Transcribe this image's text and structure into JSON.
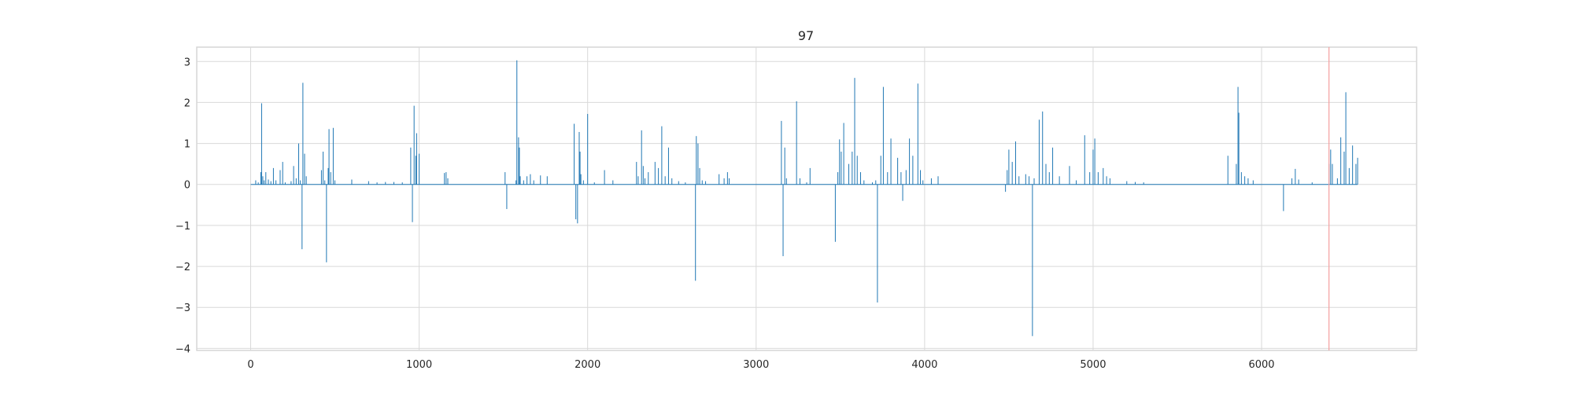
{
  "chart_data": {
    "type": "line",
    "title": "97",
    "xlabel": "",
    "ylabel": "",
    "xlim": [
      -320,
      6920
    ],
    "ylim": [
      -4.05,
      3.35
    ],
    "x_ticks": [
      0,
      1000,
      2000,
      3000,
      4000,
      5000,
      6000
    ],
    "y_ticks": [
      -4,
      -3,
      -2,
      -1,
      0,
      1,
      2,
      3
    ],
    "x_tick_labels": [
      "0",
      "1000",
      "2000",
      "3000",
      "4000",
      "5000",
      "6000"
    ],
    "y_tick_labels": [
      "−4",
      "−3",
      "−2",
      "−1",
      "0",
      "1",
      "2",
      "3"
    ],
    "grid": true,
    "legend": "none",
    "baseline_x_range": [
      0,
      6570
    ],
    "series": [
      {
        "color": "#1f77b4",
        "spikes": [
          [
            30,
            0.1
          ],
          [
            45,
            0.05
          ],
          [
            60,
            0.3
          ],
          [
            65,
            1.98
          ],
          [
            72,
            0.2
          ],
          [
            80,
            0.1
          ],
          [
            90,
            0.3
          ],
          [
            105,
            0.12
          ],
          [
            120,
            0.08
          ],
          [
            135,
            0.4
          ],
          [
            150,
            0.1
          ],
          [
            175,
            0.35
          ],
          [
            190,
            0.55
          ],
          [
            205,
            0.05
          ],
          [
            240,
            0.08
          ],
          [
            255,
            0.45
          ],
          [
            270,
            0.15
          ],
          [
            285,
            1.0
          ],
          [
            295,
            0.1
          ],
          [
            305,
            -1.58
          ],
          [
            310,
            2.48
          ],
          [
            320,
            0.75
          ],
          [
            330,
            0.2
          ],
          [
            420,
            0.35
          ],
          [
            430,
            0.8
          ],
          [
            440,
            0.1
          ],
          [
            450,
            -1.9
          ],
          [
            460,
            0.4
          ],
          [
            465,
            1.35
          ],
          [
            475,
            0.3
          ],
          [
            490,
            1.38
          ],
          [
            500,
            0.1
          ],
          [
            600,
            0.12
          ],
          [
            700,
            0.08
          ],
          [
            750,
            0.05
          ],
          [
            800,
            0.06
          ],
          [
            850,
            0.06
          ],
          [
            900,
            0.05
          ],
          [
            950,
            0.9
          ],
          [
            960,
            -0.92
          ],
          [
            970,
            1.92
          ],
          [
            980,
            0.7
          ],
          [
            985,
            1.25
          ],
          [
            1000,
            0.75
          ],
          [
            1150,
            0.28
          ],
          [
            1160,
            0.3
          ],
          [
            1170,
            0.15
          ],
          [
            1510,
            0.3
          ],
          [
            1520,
            -0.6
          ],
          [
            1575,
            0.1
          ],
          [
            1580,
            3.03
          ],
          [
            1590,
            1.15
          ],
          [
            1595,
            0.9
          ],
          [
            1600,
            0.2
          ],
          [
            1620,
            0.1
          ],
          [
            1640,
            0.2
          ],
          [
            1660,
            0.25
          ],
          [
            1680,
            0.1
          ],
          [
            1720,
            0.22
          ],
          [
            1760,
            0.2
          ],
          [
            1920,
            1.48
          ],
          [
            1930,
            -0.85
          ],
          [
            1940,
            -0.95
          ],
          [
            1950,
            1.28
          ],
          [
            1955,
            0.8
          ],
          [
            1960,
            0.25
          ],
          [
            1975,
            0.1
          ],
          [
            2000,
            1.72
          ],
          [
            2040,
            0.05
          ],
          [
            2100,
            0.35
          ],
          [
            2150,
            0.1
          ],
          [
            2290,
            0.55
          ],
          [
            2300,
            0.2
          ],
          [
            2320,
            1.32
          ],
          [
            2330,
            0.45
          ],
          [
            2340,
            0.15
          ],
          [
            2360,
            0.3
          ],
          [
            2400,
            0.55
          ],
          [
            2420,
            0.4
          ],
          [
            2440,
            1.42
          ],
          [
            2460,
            0.2
          ],
          [
            2480,
            0.9
          ],
          [
            2500,
            0.15
          ],
          [
            2540,
            0.08
          ],
          [
            2580,
            0.05
          ],
          [
            2640,
            -2.35
          ],
          [
            2645,
            1.18
          ],
          [
            2655,
            1.0
          ],
          [
            2665,
            0.4
          ],
          [
            2680,
            0.1
          ],
          [
            2700,
            0.08
          ],
          [
            2780,
            0.25
          ],
          [
            2810,
            0.15
          ],
          [
            2830,
            0.3
          ],
          [
            2840,
            0.15
          ],
          [
            3150,
            1.55
          ],
          [
            3160,
            -1.75
          ],
          [
            3170,
            0.9
          ],
          [
            3180,
            0.15
          ],
          [
            3240,
            2.03
          ],
          [
            3260,
            0.15
          ],
          [
            3300,
            0.05
          ],
          [
            3320,
            0.4
          ],
          [
            3470,
            -1.4
          ],
          [
            3485,
            0.3
          ],
          [
            3495,
            1.1
          ],
          [
            3505,
            0.8
          ],
          [
            3520,
            1.5
          ],
          [
            3550,
            0.5
          ],
          [
            3570,
            0.8
          ],
          [
            3585,
            2.6
          ],
          [
            3600,
            0.7
          ],
          [
            3620,
            0.3
          ],
          [
            3640,
            0.1
          ],
          [
            3690,
            0.05
          ],
          [
            3710,
            0.1
          ],
          [
            3720,
            -2.88
          ],
          [
            3740,
            0.7
          ],
          [
            3755,
            2.38
          ],
          [
            3780,
            0.3
          ],
          [
            3800,
            1.12
          ],
          [
            3840,
            0.65
          ],
          [
            3860,
            0.3
          ],
          [
            3870,
            -0.4
          ],
          [
            3890,
            0.35
          ],
          [
            3910,
            1.12
          ],
          [
            3930,
            0.7
          ],
          [
            3960,
            2.46
          ],
          [
            3975,
            0.35
          ],
          [
            3990,
            0.1
          ],
          [
            4040,
            0.15
          ],
          [
            4080,
            0.2
          ],
          [
            4480,
            -0.18
          ],
          [
            4490,
            0.35
          ],
          [
            4500,
            0.85
          ],
          [
            4520,
            0.55
          ],
          [
            4540,
            1.05
          ],
          [
            4560,
            0.2
          ],
          [
            4600,
            0.25
          ],
          [
            4620,
            0.2
          ],
          [
            4640,
            -3.7
          ],
          [
            4650,
            0.15
          ],
          [
            4680,
            1.58
          ],
          [
            4700,
            1.78
          ],
          [
            4720,
            0.5
          ],
          [
            4740,
            0.3
          ],
          [
            4760,
            0.9
          ],
          [
            4800,
            0.2
          ],
          [
            4860,
            0.45
          ],
          [
            4900,
            0.1
          ],
          [
            4950,
            1.2
          ],
          [
            4980,
            0.3
          ],
          [
            5000,
            0.85
          ],
          [
            5010,
            1.12
          ],
          [
            5030,
            0.3
          ],
          [
            5060,
            0.4
          ],
          [
            5080,
            0.2
          ],
          [
            5100,
            0.15
          ],
          [
            5200,
            0.08
          ],
          [
            5250,
            0.06
          ],
          [
            5300,
            0.05
          ],
          [
            5800,
            0.7
          ],
          [
            5850,
            0.5
          ],
          [
            5860,
            2.38
          ],
          [
            5865,
            1.75
          ],
          [
            5880,
            0.3
          ],
          [
            5900,
            0.2
          ],
          [
            5920,
            0.15
          ],
          [
            5950,
            0.1
          ],
          [
            6130,
            -0.65
          ],
          [
            6180,
            0.15
          ],
          [
            6200,
            0.38
          ],
          [
            6220,
            0.12
          ],
          [
            6300,
            0.05
          ],
          [
            6400,
            0.5
          ],
          [
            6410,
            0.85
          ],
          [
            6420,
            0.5
          ],
          [
            6450,
            0.15
          ],
          [
            6470,
            1.15
          ],
          [
            6490,
            0.8
          ],
          [
            6500,
            2.25
          ],
          [
            6520,
            0.4
          ],
          [
            6540,
            0.95
          ],
          [
            6560,
            0.5
          ],
          [
            6570,
            0.65
          ]
        ]
      }
    ],
    "reference_line": {
      "x": 6400,
      "color": "#f4a0a0"
    }
  }
}
